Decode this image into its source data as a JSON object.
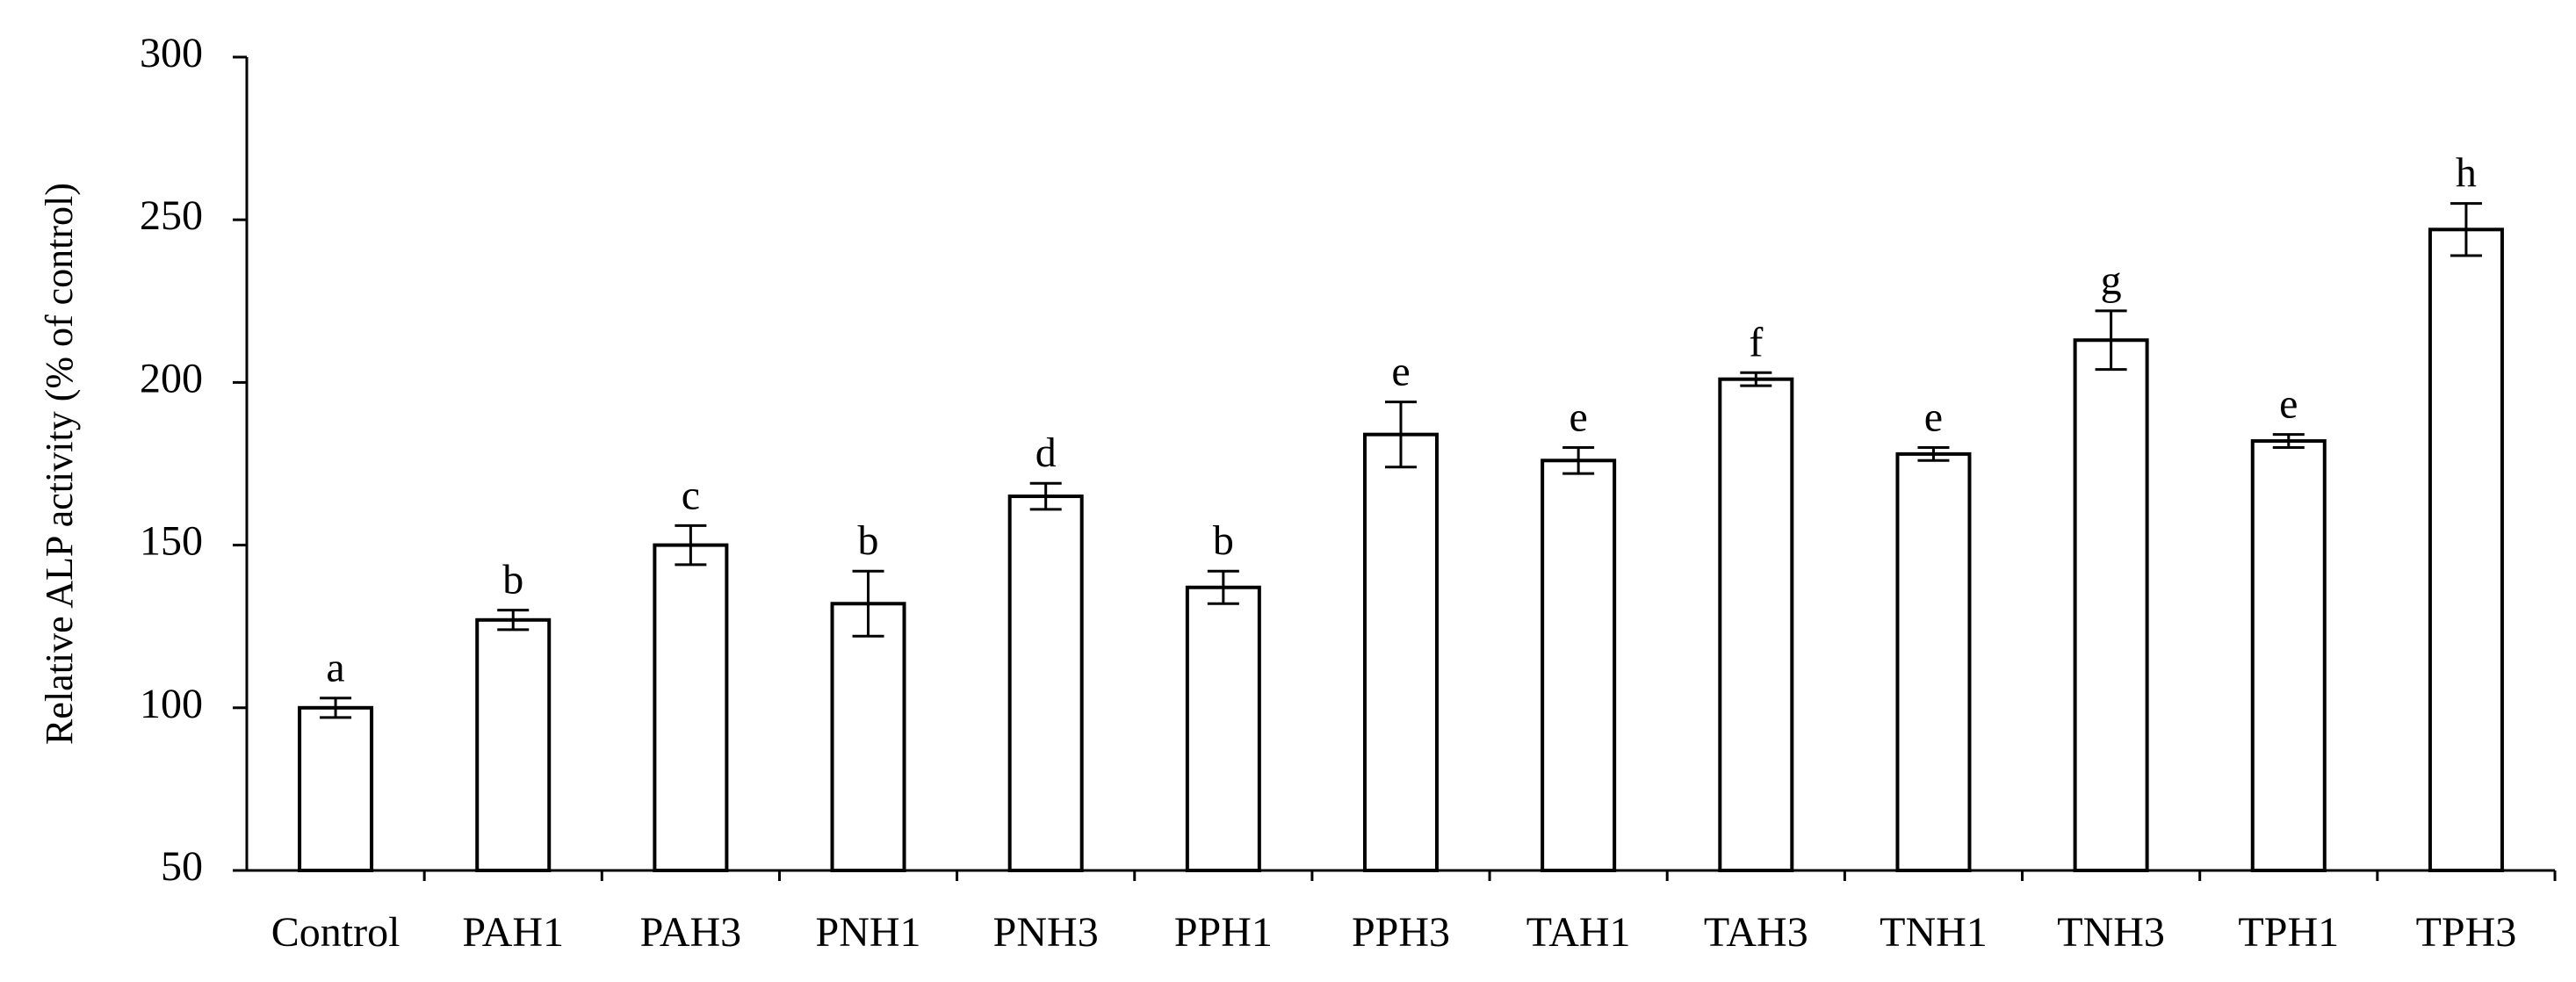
{
  "chart_data": {
    "type": "bar",
    "y_label": "Relative ALP activity (% of control)",
    "categories": [
      "Control",
      "PAH1",
      "PAH3",
      "PNH1",
      "PNH3",
      "PPH1",
      "PPH3",
      "TAH1",
      "TAH3",
      "TNH1",
      "TNH3",
      "TPH1",
      "TPH3"
    ],
    "values": [
      100,
      127,
      150,
      132,
      165,
      137,
      184,
      176,
      201,
      178,
      213,
      182,
      247
    ],
    "errors": [
      3,
      3,
      6,
      10,
      4,
      5,
      10,
      4,
      2,
      2,
      9,
      2,
      8
    ],
    "significance_labels": [
      "a",
      "b",
      "c",
      "b",
      "d",
      "b",
      "e",
      "e",
      "f",
      "e",
      "g",
      "e",
      "h"
    ],
    "color": "#ffffff",
    "ylim": [
      50,
      300
    ],
    "yticks": [
      50,
      100,
      150,
      200,
      250,
      300
    ],
    "grid": false
  }
}
